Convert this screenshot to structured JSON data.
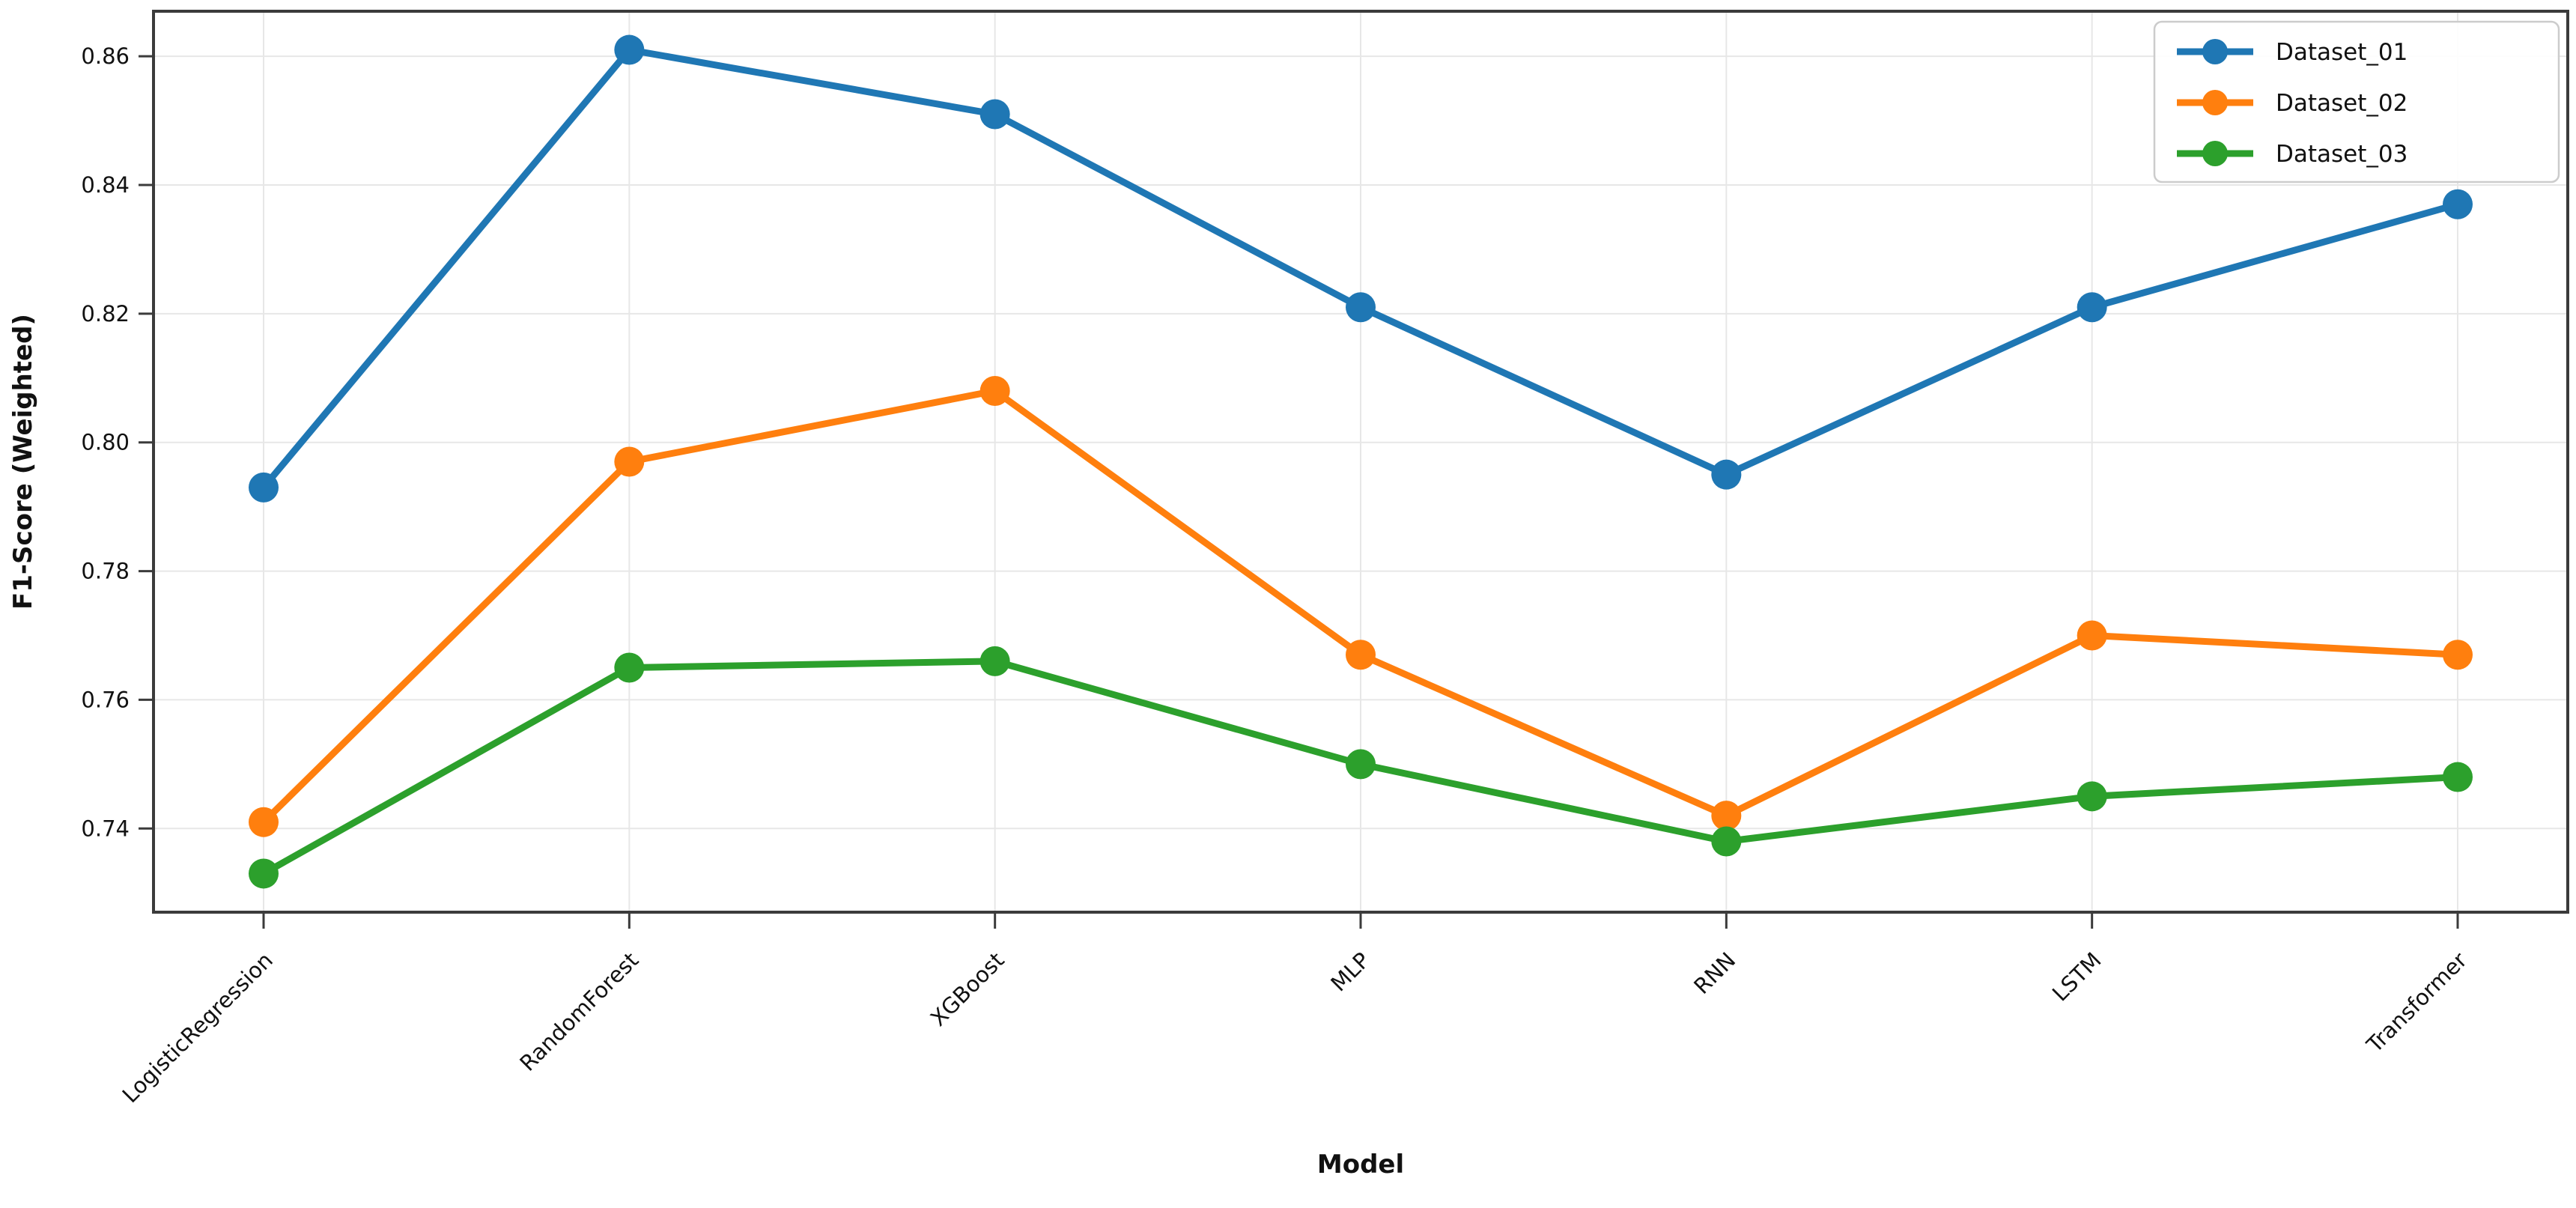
{
  "chart_data": {
    "type": "line",
    "title": "",
    "xlabel": "Model",
    "ylabel": "F1-Score (Weighted)",
    "categories": [
      "LogisticRegression",
      "RandomForest",
      "XGBoost",
      "MLP",
      "RNN",
      "LSTM",
      "Transformer"
    ],
    "series": [
      {
        "name": "Dataset_01",
        "color": "#1f77b4",
        "values": [
          0.793,
          0.861,
          0.851,
          0.821,
          0.795,
          0.821,
          0.837
        ]
      },
      {
        "name": "Dataset_02",
        "color": "#ff7f0e",
        "values": [
          0.741,
          0.797,
          0.808,
          0.767,
          0.742,
          0.77,
          0.767
        ]
      },
      {
        "name": "Dataset_03",
        "color": "#2ca02c",
        "values": [
          0.733,
          0.765,
          0.766,
          0.75,
          0.738,
          0.745,
          0.748
        ]
      }
    ],
    "yticks": [
      0.74,
      0.76,
      0.78,
      0.8,
      0.82,
      0.84,
      0.86
    ],
    "ylim": [
      0.727,
      0.867
    ],
    "grid": true,
    "legend_position": "upper right",
    "x_tick_rotation": 45,
    "marker": "circle",
    "colors": {
      "grid": "#e7e7e7",
      "spine": "#3b3b3b",
      "tick_text": "#1a1a1a",
      "legend_border": "#cccccc",
      "background": "#ffffff"
    }
  }
}
